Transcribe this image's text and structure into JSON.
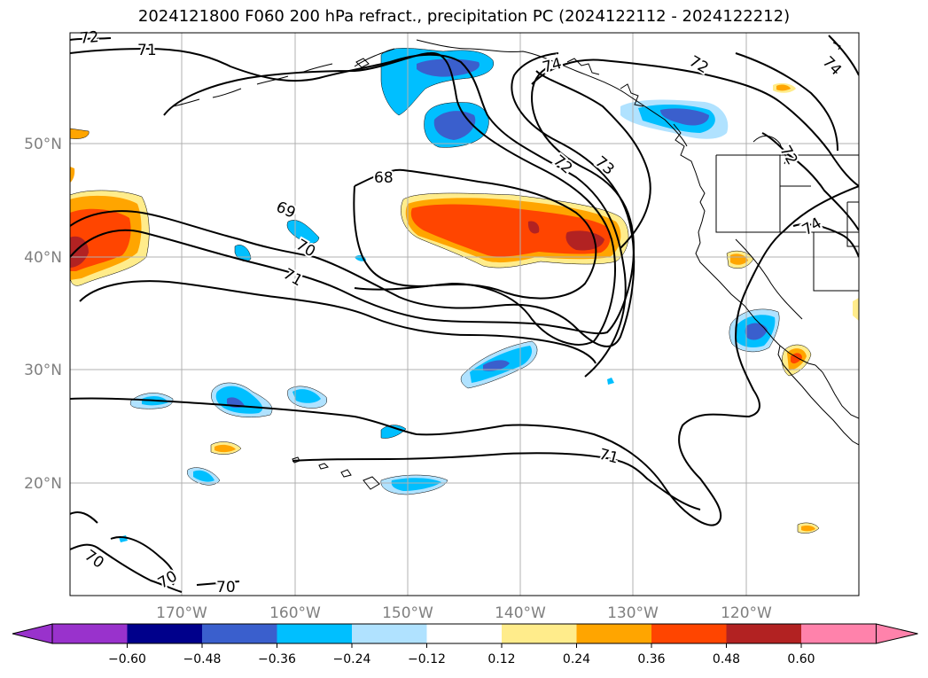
{
  "title": "2024121800 F060 200 hPa refract., precipitation PC (2024122112 - 2024122212)",
  "map": {
    "lat_labels": [
      "50°N",
      "40°N",
      "30°N",
      "20°N"
    ],
    "lon_labels": [
      "170°W",
      "160°W",
      "150°W",
      "140°W",
      "130°W",
      "120°W"
    ],
    "contour_labels": [
      "72",
      "71",
      "74",
      "72",
      "74",
      "68",
      "72",
      "73",
      "72",
      "69",
      "70",
      "71",
      "74",
      "71",
      "70",
      "70",
      "70"
    ]
  },
  "colorbar": {
    "ticks": [
      "−0.60",
      "−0.48",
      "−0.36",
      "−0.24",
      "−0.12",
      "0.12",
      "0.24",
      "0.36",
      "0.48",
      "0.60"
    ],
    "colors": [
      "#9932cc",
      "#00008b",
      "#3a5fcd",
      "#00bfff",
      "#b0e2ff",
      "#ffffff",
      "#ffec8b",
      "#ffa500",
      "#ff4500",
      "#b22222",
      "#ff82ab"
    ]
  },
  "colors": {
    "grid": "#b0b0b0",
    "contour": "#000000",
    "label": "#7f7f7f"
  }
}
